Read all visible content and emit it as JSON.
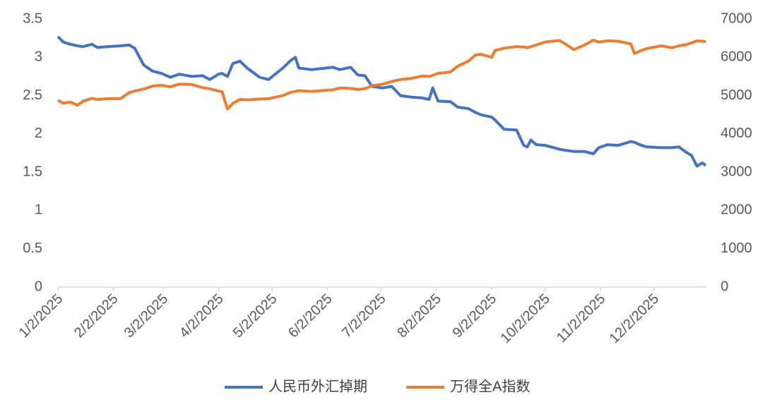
{
  "chart_data": {
    "type": "line",
    "x": [
      "1/2/2025",
      "1/5/2025",
      "1/9/2025",
      "1/13/2025",
      "1/16/2025",
      "1/21/2025",
      "1/24/2025",
      "1/30/2025",
      "2/6/2025",
      "2/11/2025",
      "2/14/2025",
      "2/19/2025",
      "2/24/2025",
      "3/1/2025",
      "3/6/2025",
      "3/11/2025",
      "3/18/2025",
      "3/24/2025",
      "3/28/2025",
      "4/2/2025",
      "4/4/2025",
      "4/7/2025",
      "4/10/2025",
      "4/14/2025",
      "4/18/2025",
      "4/25/2025",
      "4/30/2025",
      "5/8/2025",
      "5/12/2025",
      "5/15/2025",
      "5/17/2025",
      "5/24/2025",
      "6/5/2025",
      "6/9/2025",
      "6/15/2025",
      "6/19/2025",
      "6/23/2025",
      "6/27/2025",
      "7/3/2025",
      "7/8/2025",
      "7/13/2025",
      "7/19/2025",
      "7/25/2025",
      "7/29/2025",
      "7/31/2025",
      "8/3/2025",
      "8/10/2025",
      "8/14/2025",
      "8/20/2025",
      "8/24/2025",
      "8/27/2025",
      "9/2/2025",
      "9/4/2025",
      "9/9/2025",
      "9/16/2025",
      "9/20/2025",
      "9/22/2025",
      "9/24/2025",
      "9/27/2025",
      "10/2/2025",
      "10/10/2025",
      "10/15/2025",
      "10/18/2025",
      "10/24/2025",
      "10/29/2025",
      "11/1/2025",
      "11/6/2025",
      "11/12/2025",
      "11/19/2025",
      "11/21/2025",
      "11/25/2025",
      "11/28/2025",
      "12/6/2025",
      "12/12/2025",
      "12/16/2025",
      "12/20/2025",
      "12/23/2025",
      "12/26/2025",
      "12/29/2025",
      "12/31/2025"
    ],
    "series": [
      {
        "name": "人民币外汇掉期",
        "color": "#4472c4",
        "axis": "y",
        "values": [
          3.27,
          3.2,
          3.17,
          3.15,
          3.14,
          3.17,
          3.13,
          3.14,
          3.15,
          3.16,
          3.12,
          2.9,
          2.82,
          2.79,
          2.74,
          2.78,
          2.75,
          2.76,
          2.71,
          2.78,
          2.79,
          2.75,
          2.92,
          2.95,
          2.86,
          2.74,
          2.71,
          2.86,
          2.95,
          3.0,
          2.86,
          2.84,
          2.87,
          2.84,
          2.87,
          2.77,
          2.76,
          2.62,
          2.6,
          2.62,
          2.5,
          2.48,
          2.47,
          2.45,
          2.6,
          2.43,
          2.42,
          2.35,
          2.33,
          2.28,
          2.25,
          2.22,
          2.18,
          2.06,
          2.05,
          1.85,
          1.83,
          1.92,
          1.86,
          1.85,
          1.8,
          1.78,
          1.77,
          1.77,
          1.74,
          1.82,
          1.86,
          1.85,
          1.9,
          1.89,
          1.85,
          1.83,
          1.82,
          1.82,
          1.83,
          1.76,
          1.72,
          1.58,
          1.62,
          1.59
        ]
      },
      {
        "name": "万得全A指数",
        "color": "#ed7d31",
        "axis": "y2",
        "values": [
          4880,
          4800,
          4830,
          4750,
          4850,
          4930,
          4900,
          4920,
          4920,
          5080,
          5120,
          5170,
          5250,
          5270,
          5230,
          5300,
          5290,
          5210,
          5180,
          5120,
          5100,
          4650,
          4800,
          4900,
          4890,
          4910,
          4920,
          5000,
          5080,
          5110,
          5130,
          5110,
          5150,
          5200,
          5190,
          5160,
          5180,
          5260,
          5300,
          5370,
          5420,
          5450,
          5510,
          5500,
          5530,
          5580,
          5620,
          5770,
          5900,
          6060,
          6080,
          6000,
          6180,
          6240,
          6280,
          6270,
          6250,
          6280,
          6320,
          6400,
          6440,
          6300,
          6200,
          6320,
          6450,
          6400,
          6430,
          6420,
          6350,
          6100,
          6180,
          6230,
          6300,
          6250,
          6300,
          6330,
          6380,
          6430,
          6420,
          6410
        ]
      }
    ],
    "xlim": [
      "1/2/2025",
      "12/31/2025"
    ],
    "xticks": [
      "1/2/2025",
      "2/2/2025",
      "3/2/2025",
      "4/2/2025",
      "5/2/2025",
      "6/2/2025",
      "7/2/2025",
      "8/2/2025",
      "9/2/2025",
      "10/2/2025",
      "11/2/2025",
      "12/2/2025"
    ],
    "ylim": [
      0,
      3.5
    ],
    "yticks": [
      0,
      0.5,
      1,
      1.5,
      2,
      2.5,
      3,
      3.5
    ],
    "y2lim": [
      0,
      7000
    ],
    "y2ticks": [
      0,
      1000,
      2000,
      3000,
      4000,
      5000,
      6000,
      7000
    ],
    "grid": false
  }
}
